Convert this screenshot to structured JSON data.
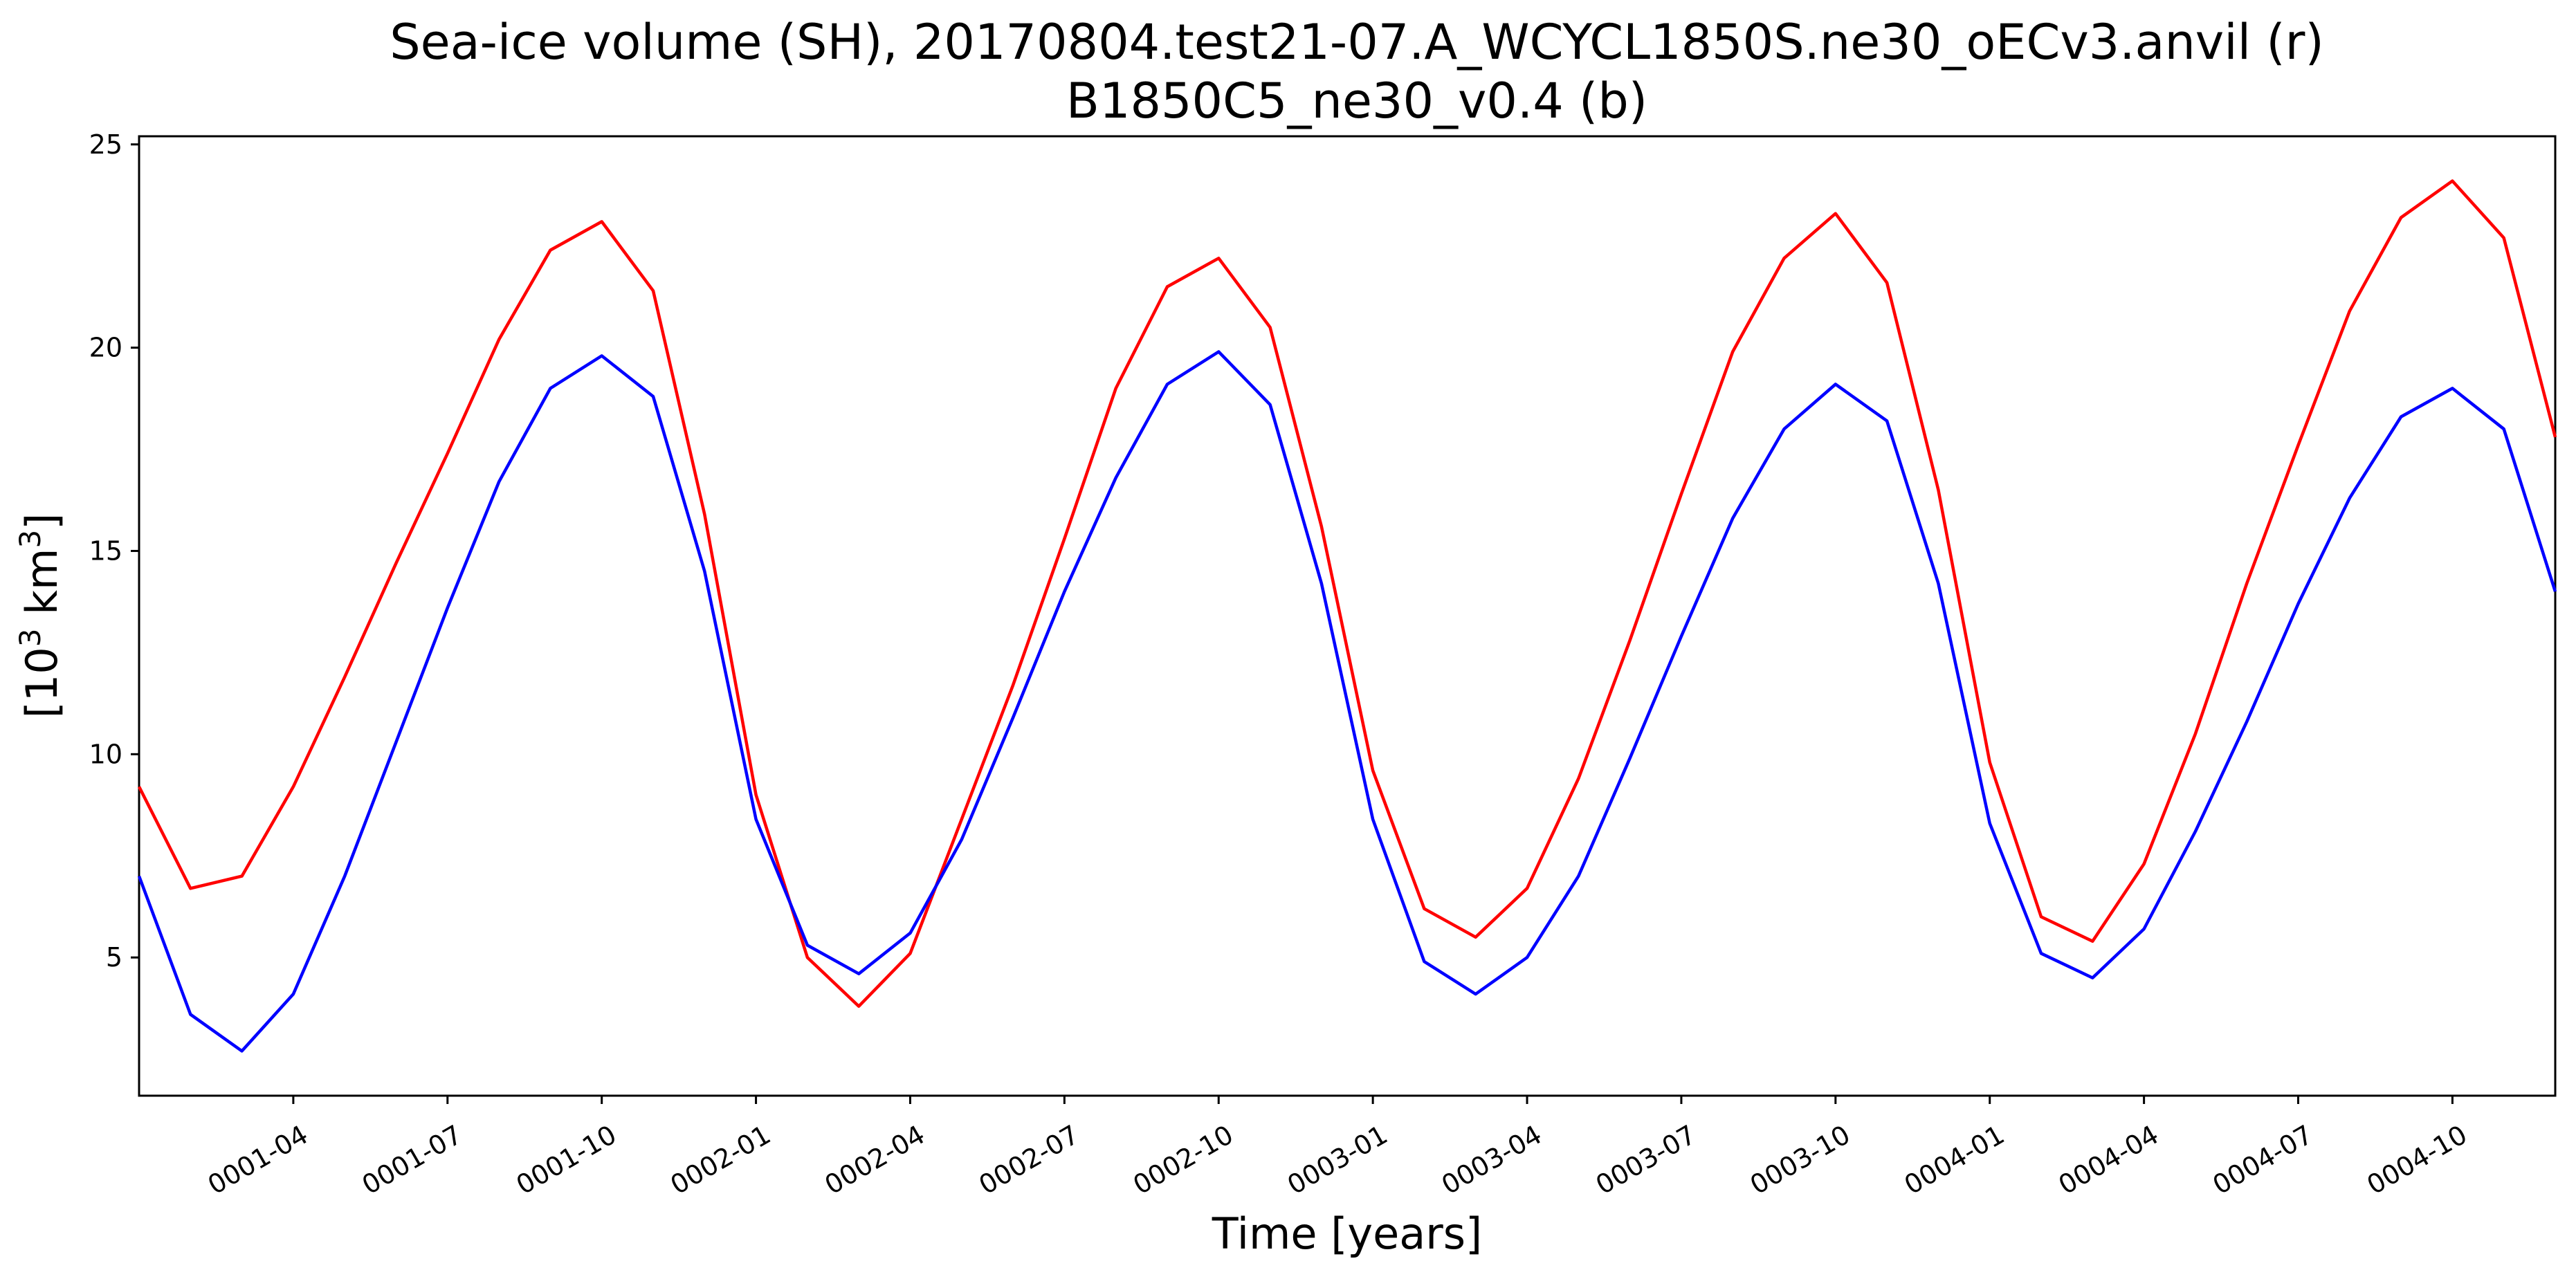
{
  "chart_data": {
    "type": "line",
    "title_line1": "Sea-ice volume (SH), 20170804.test21-07.A_WCYCL1850S.ne30_oECv3.anvil (r)",
    "title_line2": "B1850C5_ne30_v0.4 (b)",
    "xlabel": "Time [years]",
    "ylabel_prefix": "[10",
    "ylabel_exp1": "3",
    "ylabel_mid": " km",
    "ylabel_exp2": "3",
    "ylabel_suffix": "]",
    "x": [
      "0001-01",
      "0001-02",
      "0001-03",
      "0001-04",
      "0001-05",
      "0001-06",
      "0001-07",
      "0001-08",
      "0001-09",
      "0001-10",
      "0001-11",
      "0001-12",
      "0002-01",
      "0002-02",
      "0002-03",
      "0002-04",
      "0002-05",
      "0002-06",
      "0002-07",
      "0002-08",
      "0002-09",
      "0002-10",
      "0002-11",
      "0002-12",
      "0003-01",
      "0003-02",
      "0003-03",
      "0003-04",
      "0003-05",
      "0003-06",
      "0003-07",
      "0003-08",
      "0003-09",
      "0003-10",
      "0003-11",
      "0003-12",
      "0004-01",
      "0004-02",
      "0004-03",
      "0004-04",
      "0004-05",
      "0004-06",
      "0004-07",
      "0004-08",
      "0004-09",
      "0004-10",
      "0004-11",
      "0004-12"
    ],
    "series": [
      {
        "color": "#ff0000",
        "values": [
          9.2,
          6.7,
          7.0,
          9.2,
          11.9,
          14.7,
          17.4,
          20.2,
          22.4,
          23.1,
          21.4,
          15.9,
          9.0,
          5.0,
          3.8,
          5.1,
          8.4,
          11.7,
          15.3,
          19.0,
          21.5,
          22.2,
          20.5,
          15.6,
          9.6,
          6.2,
          5.5,
          6.7,
          9.4,
          12.8,
          16.4,
          19.9,
          22.2,
          23.3,
          21.6,
          16.5,
          9.8,
          6.0,
          5.4,
          7.3,
          10.5,
          14.2,
          17.6,
          20.9,
          23.2,
          24.1,
          22.7,
          17.8
        ]
      },
      {
        "color": "#0000ff",
        "values": [
          7.0,
          3.6,
          2.7,
          4.1,
          7.0,
          10.3,
          13.6,
          16.7,
          19.0,
          19.8,
          18.8,
          14.5,
          8.4,
          5.3,
          4.6,
          5.6,
          7.9,
          10.9,
          14.0,
          16.8,
          19.1,
          19.9,
          18.6,
          14.2,
          8.4,
          4.9,
          4.1,
          5.0,
          7.0,
          9.9,
          12.9,
          15.8,
          18.0,
          19.1,
          18.2,
          14.2,
          8.3,
          5.1,
          4.5,
          5.7,
          8.1,
          10.8,
          13.7,
          16.3,
          18.3,
          19.0,
          18.0,
          14.0
        ]
      }
    ],
    "x_ticks": [
      "0001-04",
      "0001-07",
      "0001-10",
      "0002-01",
      "0002-04",
      "0002-07",
      "0002-10",
      "0003-01",
      "0003-04",
      "0003-07",
      "0003-10",
      "0004-01",
      "0004-04",
      "0004-07",
      "0004-10"
    ],
    "y_ticks": [
      5,
      10,
      15,
      20,
      25
    ],
    "ylim": [
      1.6,
      25.2
    ],
    "grid": false,
    "legend": "none"
  }
}
